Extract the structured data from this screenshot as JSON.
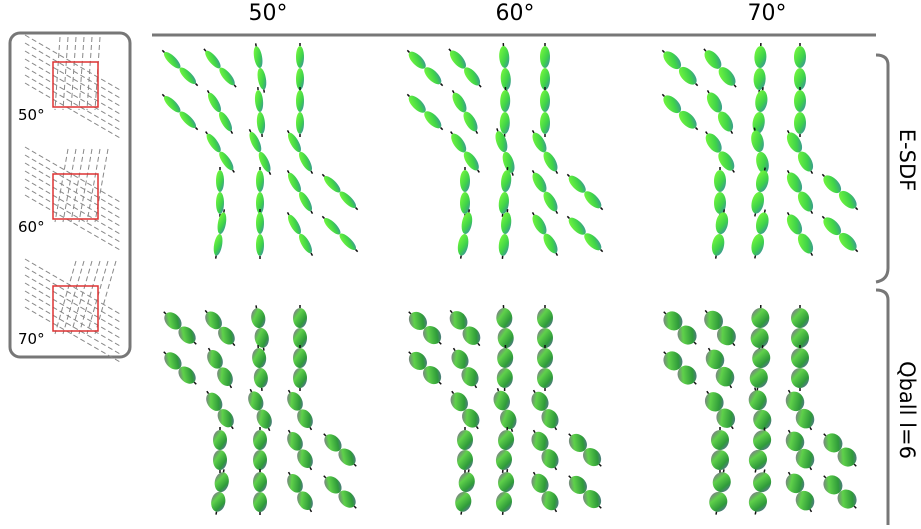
{
  "columns": [
    "50°",
    "60°",
    "70°"
  ],
  "rows": [
    "E-SDF",
    "Qball l=6"
  ],
  "inset_labels": [
    "50°",
    "60°",
    "70°"
  ]
}
